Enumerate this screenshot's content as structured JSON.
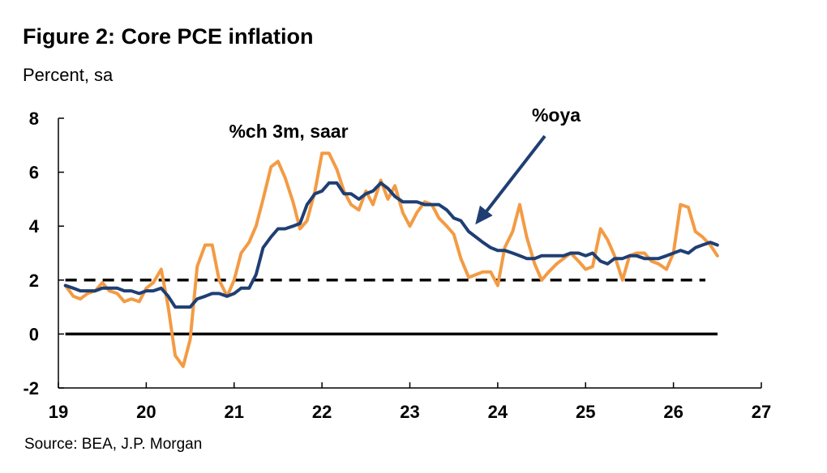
{
  "title": "Figure 2: Core PCE inflation",
  "subtitle": "Percent, sa",
  "source": "Source: BEA, J.P. Morgan",
  "chart_data": {
    "type": "line",
    "title": "Figure 2: Core PCE inflation",
    "ylabel": "Percent, sa",
    "xlim": [
      19,
      27
    ],
    "ylim": [
      -2,
      8
    ],
    "x_ticks": [
      19,
      20,
      21,
      22,
      23,
      24,
      25,
      26,
      27
    ],
    "y_ticks": [
      -2,
      0,
      2,
      4,
      6,
      8
    ],
    "x_tick_labels": [
      "19",
      "20",
      "21",
      "22",
      "23",
      "24",
      "25",
      "26",
      "27"
    ],
    "y_tick_labels": [
      "-2",
      "0",
      "2",
      "4",
      "6",
      "8"
    ],
    "grid": false,
    "reference_lines": [
      {
        "y": 0,
        "style": "solid"
      },
      {
        "y": 2,
        "style": "dashed"
      }
    ],
    "annotations": [
      {
        "text": "%ch 3m, saar",
        "x": 22.0,
        "y": 7.4
      },
      {
        "text": "%oya",
        "x": 23.9,
        "y": 8.0,
        "arrow_to": [
          23.8,
          4.0
        ]
      }
    ],
    "series": [
      {
        "name": "%oya",
        "color": "#1f3f73",
        "x": [
          19.08,
          19.17,
          19.25,
          19.33,
          19.42,
          19.5,
          19.58,
          19.67,
          19.75,
          19.83,
          19.92,
          20.0,
          20.08,
          20.17,
          20.25,
          20.33,
          20.42,
          20.5,
          20.58,
          20.67,
          20.75,
          20.83,
          20.92,
          21.0,
          21.08,
          21.17,
          21.25,
          21.33,
          21.42,
          21.5,
          21.58,
          21.67,
          21.75,
          21.83,
          21.92,
          22.0,
          22.08,
          22.17,
          22.25,
          22.33,
          22.42,
          22.5,
          22.58,
          22.67,
          22.75,
          22.83,
          22.92,
          23.0,
          23.08,
          23.17,
          23.25,
          23.33,
          23.42,
          23.5,
          23.58,
          23.67,
          23.75,
          23.83,
          23.92,
          24.0,
          24.08,
          24.17,
          24.25,
          24.33,
          24.42,
          24.5,
          24.58,
          24.67,
          24.75,
          24.83,
          24.92,
          25.0,
          25.08,
          25.17,
          25.25,
          25.33,
          25.42,
          25.5,
          25.58,
          25.67,
          25.75,
          25.83,
          25.92,
          26.0,
          26.08,
          26.17,
          26.25,
          26.33,
          26.42,
          26.5
        ],
        "y": [
          1.8,
          1.7,
          1.6,
          1.6,
          1.6,
          1.7,
          1.7,
          1.7,
          1.6,
          1.6,
          1.5,
          1.6,
          1.6,
          1.7,
          1.4,
          1.0,
          1.0,
          1.0,
          1.3,
          1.4,
          1.5,
          1.5,
          1.4,
          1.5,
          1.7,
          1.7,
          2.2,
          3.2,
          3.6,
          3.9,
          3.9,
          4.0,
          4.1,
          4.8,
          5.2,
          5.3,
          5.6,
          5.6,
          5.2,
          5.2,
          5.0,
          5.2,
          5.3,
          5.6,
          5.4,
          5.1,
          4.9,
          4.9,
          4.9,
          4.8,
          4.8,
          4.8,
          4.6,
          4.3,
          4.2,
          3.8,
          3.6,
          3.4,
          3.2,
          3.1,
          3.1,
          3.0,
          2.9,
          2.8,
          2.8,
          2.9,
          2.9,
          2.9,
          2.9,
          3.0,
          3.0,
          2.9,
          3.0,
          2.7,
          2.6,
          2.8,
          2.8,
          2.9,
          2.9,
          2.8,
          2.8,
          2.8,
          2.9,
          3.0,
          3.1,
          3.0,
          3.2,
          3.3,
          3.4,
          3.3
        ]
      },
      {
        "name": "%ch 3m, saar",
        "color": "#f39b44",
        "x": [
          19.08,
          19.17,
          19.25,
          19.33,
          19.42,
          19.5,
          19.58,
          19.67,
          19.75,
          19.83,
          19.92,
          20.0,
          20.08,
          20.17,
          20.25,
          20.33,
          20.42,
          20.5,
          20.58,
          20.67,
          20.75,
          20.83,
          20.92,
          21.0,
          21.08,
          21.17,
          21.25,
          21.33,
          21.42,
          21.5,
          21.58,
          21.67,
          21.75,
          21.83,
          21.92,
          22.0,
          22.08,
          22.17,
          22.25,
          22.33,
          22.42,
          22.5,
          22.58,
          22.67,
          22.75,
          22.83,
          22.92,
          23.0,
          23.08,
          23.17,
          23.25,
          23.33,
          23.42,
          23.5,
          23.58,
          23.67,
          23.75,
          23.83,
          23.92,
          24.0,
          24.08,
          24.17,
          24.25,
          24.33,
          24.42,
          24.5,
          24.58,
          24.67,
          24.75,
          24.83,
          24.92,
          25.0,
          25.08,
          25.17,
          25.25,
          25.33,
          25.42,
          25.5,
          25.58,
          25.67,
          25.75,
          25.83,
          25.92,
          26.0,
          26.08,
          26.17,
          26.25,
          26.33,
          26.42,
          26.5
        ],
        "y": [
          1.8,
          1.4,
          1.3,
          1.5,
          1.6,
          1.9,
          1.6,
          1.5,
          1.2,
          1.3,
          1.2,
          1.7,
          1.9,
          2.4,
          1.0,
          -0.8,
          -1.2,
          -0.2,
          2.5,
          3.3,
          3.3,
          2.0,
          1.4,
          2.0,
          3.0,
          3.4,
          4.0,
          5.0,
          6.2,
          6.4,
          5.8,
          4.9,
          3.9,
          4.2,
          5.3,
          6.7,
          6.7,
          6.1,
          5.3,
          4.8,
          4.6,
          5.3,
          4.8,
          5.7,
          5.0,
          5.5,
          4.5,
          4.0,
          4.5,
          4.9,
          4.8,
          4.3,
          4.0,
          3.7,
          2.8,
          2.1,
          2.2,
          2.3,
          2.3,
          1.8,
          3.2,
          3.8,
          4.8,
          3.6,
          2.6,
          2.0,
          2.3,
          2.6,
          2.8,
          3.0,
          2.7,
          2.4,
          2.5,
          3.9,
          3.5,
          2.9,
          2.0,
          2.9,
          3.0,
          3.0,
          2.7,
          2.6,
          2.4,
          3.0,
          4.8,
          4.7,
          3.8,
          3.6,
          3.3,
          2.9
        ]
      }
    ]
  }
}
